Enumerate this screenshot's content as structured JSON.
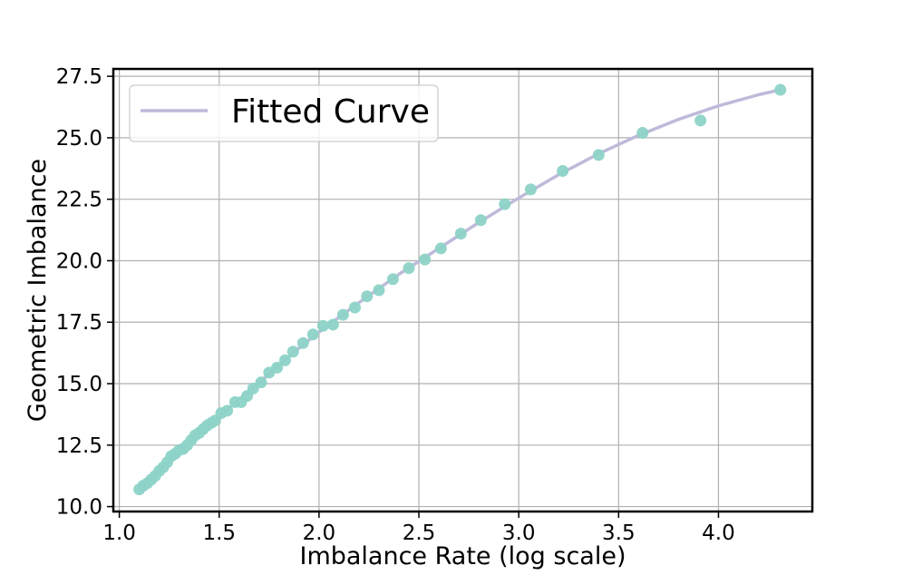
{
  "chart_data": {
    "type": "scatter",
    "title": "",
    "xlabel": "Imbalance Rate (log scale)",
    "ylabel": "Geometric Imbalance",
    "xlim": [
      0.97,
      4.47
    ],
    "ylim": [
      9.8,
      27.8
    ],
    "xticks": [
      1.0,
      1.5,
      2.0,
      2.5,
      3.0,
      3.5,
      4.0
    ],
    "xtick_labels": [
      "1.0",
      "1.5",
      "2.0",
      "2.5",
      "3.0",
      "3.5",
      "4.0"
    ],
    "yticks": [
      10.0,
      12.5,
      15.0,
      17.5,
      20.0,
      22.5,
      25.0,
      27.5
    ],
    "ytick_labels": [
      "10.0",
      "12.5",
      "15.0",
      "17.5",
      "20.0",
      "22.5",
      "25.0",
      "27.5"
    ],
    "grid": true,
    "legend": {
      "position": "top-left",
      "entries": [
        "Fitted Curve"
      ]
    },
    "colors": {
      "points": "#8dd3c7",
      "curve": "#bebada",
      "frame": "#000000",
      "grid": "#b0b0b0"
    },
    "series": [
      {
        "name": "Data Points",
        "kind": "scatter",
        "x": [
          1.1,
          1.12,
          1.14,
          1.16,
          1.18,
          1.2,
          1.22,
          1.24,
          1.26,
          1.28,
          1.3,
          1.32,
          1.34,
          1.36,
          1.38,
          1.4,
          1.42,
          1.44,
          1.46,
          1.48,
          1.51,
          1.54,
          1.58,
          1.61,
          1.64,
          1.67,
          1.71,
          1.75,
          1.79,
          1.83,
          1.87,
          1.92,
          1.97,
          2.02,
          2.07,
          2.12,
          2.18,
          2.24,
          2.3,
          2.37,
          2.45,
          2.53,
          2.61,
          2.71,
          2.81,
          2.93,
          3.06,
          3.22,
          3.4,
          3.62,
          3.91,
          4.31
        ],
        "y": [
          10.7,
          10.85,
          10.95,
          11.1,
          11.25,
          11.45,
          11.6,
          11.8,
          12.05,
          12.15,
          12.3,
          12.35,
          12.5,
          12.7,
          12.9,
          13.0,
          13.15,
          13.3,
          13.4,
          13.5,
          13.8,
          13.9,
          14.25,
          14.25,
          14.5,
          14.8,
          15.05,
          15.45,
          15.65,
          15.95,
          16.3,
          16.65,
          17.0,
          17.35,
          17.4,
          17.8,
          18.1,
          18.55,
          18.8,
          19.25,
          19.7,
          20.05,
          20.5,
          21.1,
          21.65,
          22.3,
          22.9,
          23.65,
          24.3,
          25.2,
          25.7,
          26.95
        ]
      },
      {
        "name": "Fitted Curve",
        "kind": "line",
        "x": [
          1.1,
          1.2,
          1.3,
          1.4,
          1.5,
          1.6,
          1.7,
          1.8,
          1.9,
          2.0,
          2.2,
          2.4,
          2.6,
          2.8,
          3.0,
          3.2,
          3.4,
          3.6,
          3.8,
          4.0,
          4.2,
          4.31
        ],
        "y": [
          10.7,
          11.45,
          12.2,
          12.95,
          13.65,
          14.35,
          15.05,
          15.75,
          16.45,
          17.1,
          18.3,
          19.45,
          20.5,
          21.55,
          22.55,
          23.5,
          24.35,
          25.1,
          25.75,
          26.3,
          26.75,
          26.95
        ]
      }
    ]
  }
}
